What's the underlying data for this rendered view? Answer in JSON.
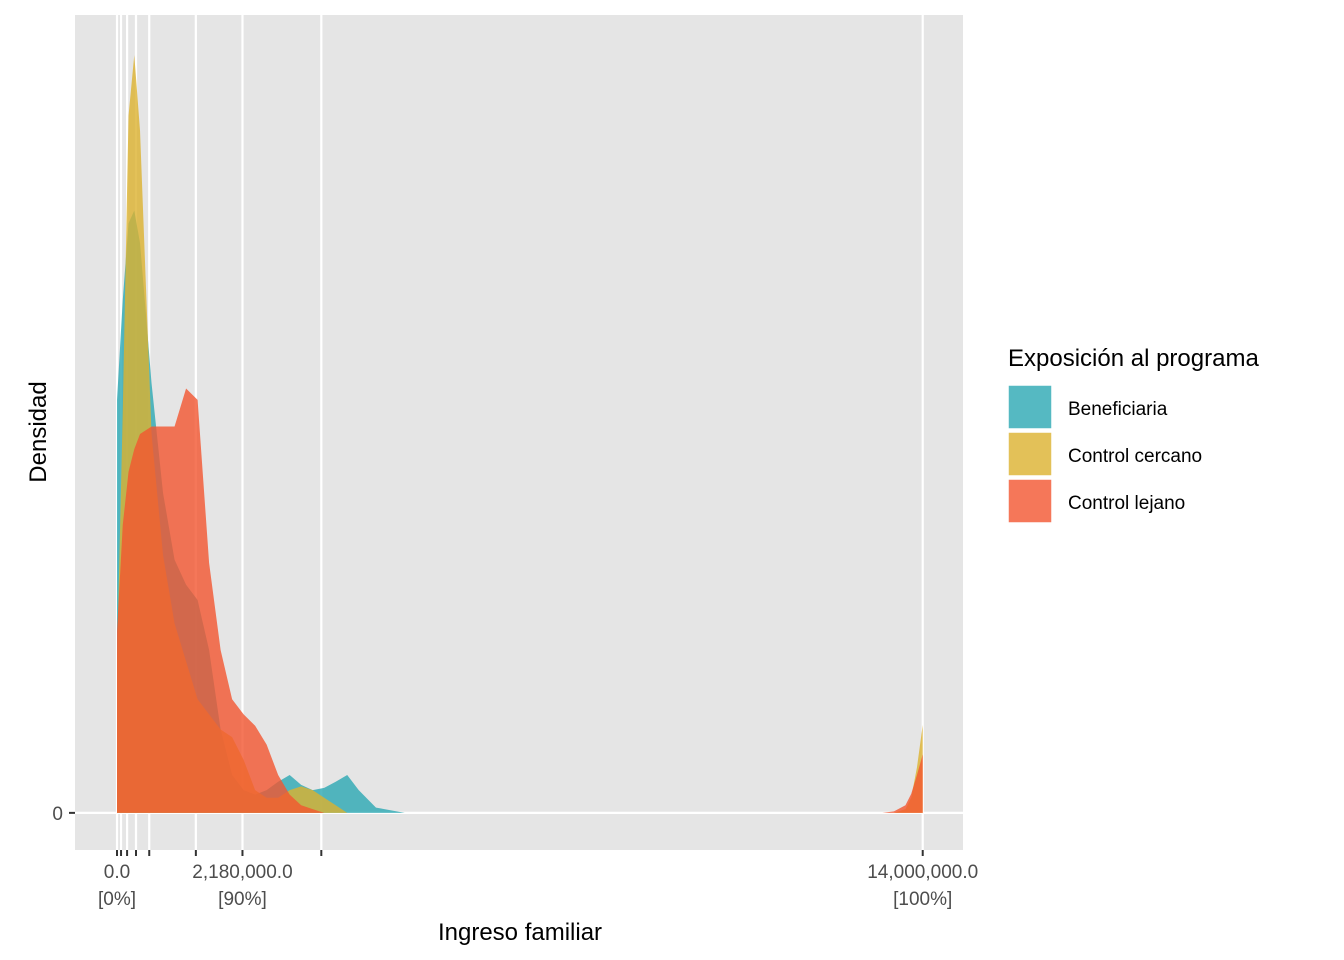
{
  "chart_data": {
    "type": "density",
    "x_label": "Ingreso familiar",
    "y_label": "Densidad",
    "legend_title": "Exposición al programa",
    "legend_position": "right",
    "alpha": 0.8,
    "grid": true,
    "xlim": [
      -730000,
      14700000
    ],
    "ylim": [
      -0.049,
      1.053
    ],
    "xticks": [
      {
        "value": 0,
        "label": "0.0",
        "quantile": "[0%]"
      },
      70000,
      175000,
      330000,
      560000,
      1370000,
      {
        "value": 2180000,
        "label": "2,180,000.0",
        "quantile": "[90%]"
      },
      3550000,
      {
        "value": 14000000,
        "label": "14,000,000.0",
        "quantile": "[100%]"
      }
    ],
    "yticks": [
      0
    ],
    "x": [
      0,
      100000,
      200000,
      300000,
      400000,
      500000,
      600000,
      800000,
      1000000,
      1200000,
      1400000,
      1600000,
      1800000,
      2000000,
      2200000,
      2400000,
      2600000,
      2800000,
      3000000,
      3200000,
      3400000,
      3600000,
      3800000,
      4000000,
      4200000,
      4500000,
      5000000,
      13000000,
      13300000,
      13500000,
      13700000,
      13800000,
      13900000,
      14000000
    ],
    "series": [
      {
        "name": "Beneficiaria",
        "color": "#2aa7b3",
        "values": [
          0.545,
          0.677,
          0.778,
          0.795,
          0.752,
          0.66,
          0.567,
          0.422,
          0.334,
          0.301,
          0.281,
          0.215,
          0.11,
          0.05,
          0.03,
          0.024,
          0.03,
          0.041,
          0.05,
          0.037,
          0.03,
          0.033,
          0.041,
          0.05,
          0.03,
          0.007,
          0,
          0,
          0,
          0,
          0,
          0,
          0,
          0
        ]
      },
      {
        "name": "Control cercano",
        "color": "#dcb12e",
        "values": [
          0.2,
          0.53,
          0.92,
          1.0,
          0.9,
          0.7,
          0.5,
          0.34,
          0.25,
          0.2,
          0.15,
          0.13,
          0.11,
          0.1,
          0.07,
          0.03,
          0.02,
          0.02,
          0.03,
          0.035,
          0.03,
          0.02,
          0.01,
          0,
          0,
          0,
          0,
          0,
          0,
          0,
          0.005,
          0.02,
          0.06,
          0.116
        ]
      },
      {
        "name": "Control lejano",
        "color": "#f25530",
        "values": [
          0.24,
          0.38,
          0.45,
          0.48,
          0.5,
          0.505,
          0.51,
          0.51,
          0.51,
          0.56,
          0.545,
          0.33,
          0.215,
          0.15,
          0.13,
          0.115,
          0.09,
          0.05,
          0.024,
          0.01,
          0.005,
          0,
          0,
          0,
          0,
          0,
          0,
          0,
          0,
          0.002,
          0.01,
          0.025,
          0.05,
          0.077
        ]
      }
    ]
  }
}
